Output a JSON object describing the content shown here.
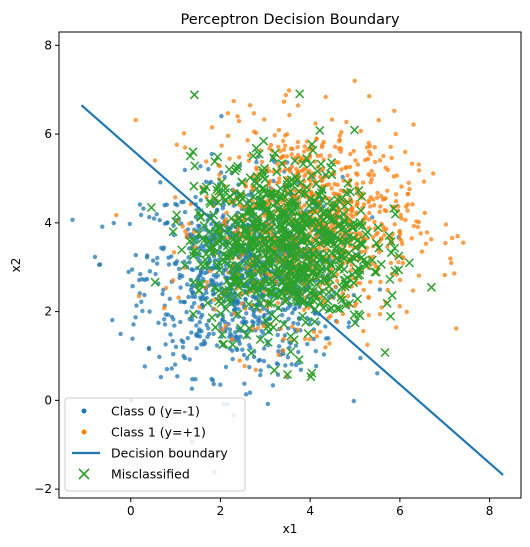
{
  "chart_data": {
    "type": "scatter",
    "title": "Perceptron Decision Boundary",
    "xlabel": "x1",
    "ylabel": "x2",
    "xlim": [
      -1.6,
      8.7
    ],
    "ylim": [
      -2.2,
      8.3
    ],
    "x_ticks": [
      "0",
      "2",
      "4",
      "6",
      "8"
    ],
    "y_ticks": [
      "−2",
      "0",
      "2",
      "4",
      "6",
      "8"
    ],
    "grid": false,
    "legend_position": "lower-left",
    "series": [
      {
        "name": "Class 0 (y=-1)",
        "kind": "scatter-dot",
        "color": "#1f77b4",
        "distribution": {
          "center": [
            2.5,
            2.8
          ],
          "std": [
            1.1,
            1.1
          ],
          "count": 1000
        }
      },
      {
        "name": "Class 1 (y=+1)",
        "kind": "scatter-dot",
        "color": "#ff7f0e",
        "distribution": {
          "center": [
            4.0,
            4.0
          ],
          "std": [
            1.15,
            1.1
          ],
          "count": 1000
        }
      },
      {
        "name": "Decision boundary",
        "kind": "line",
        "color": "#1f77b4",
        "x": [
          -1.1,
          8.3
        ],
        "y": [
          6.65,
          -1.68
        ]
      },
      {
        "name": "Misclassified",
        "kind": "scatter-x",
        "color": "#2ca02c",
        "distribution": {
          "center": [
            3.4,
            3.5
          ],
          "std": [
            1.0,
            0.95
          ],
          "count": 800
        }
      }
    ]
  }
}
